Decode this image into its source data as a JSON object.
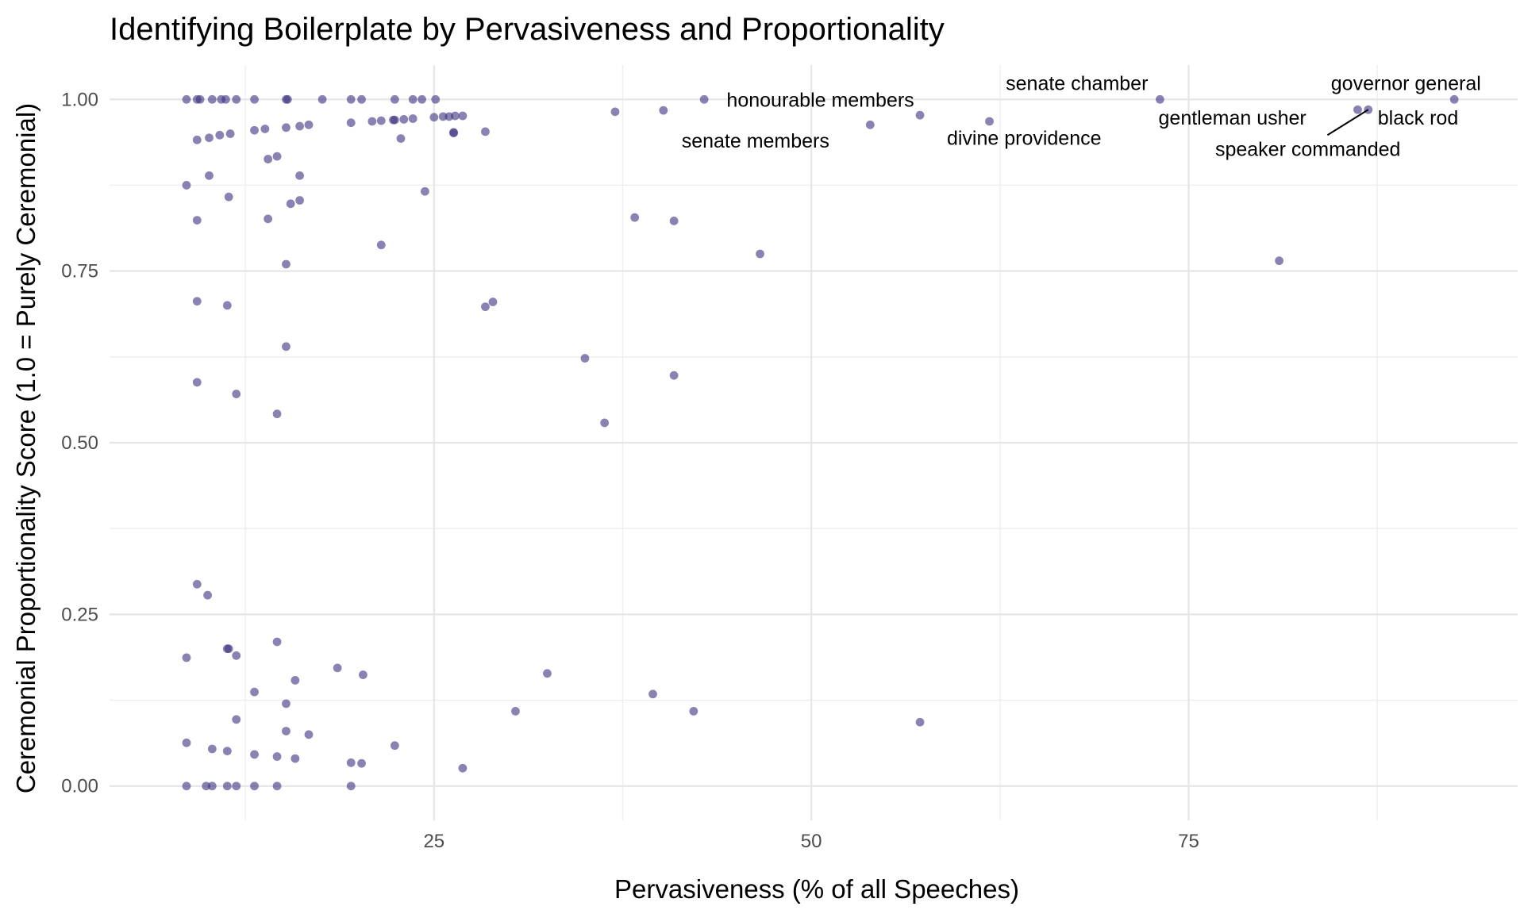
{
  "chart_data": {
    "type": "scatter",
    "title": "Identifying Boilerplate by Pervasiveness and Proportionality",
    "xlabel": "Pervasiveness (% of all Speeches)",
    "ylabel": "Ceremonial Proportionality Score (1.0 = Purely Ceremonial)",
    "xlim": [
      3.5,
      96.8
    ],
    "ylim": [
      -0.05,
      1.05
    ],
    "x_ticks": [
      25,
      50,
      75
    ],
    "y_ticks": [
      0.0,
      0.25,
      0.5,
      0.75,
      1.0
    ],
    "x_tick_labels": [
      "25",
      "50",
      "75"
    ],
    "y_tick_labels": [
      "0.00",
      "0.25",
      "0.50",
      "0.75",
      "1.00"
    ],
    "grid": true,
    "legend": "none",
    "point_color": "#3b3181",
    "point_opacity": 0.6,
    "points": [
      {
        "x": 8.6,
        "y": 1.0
      },
      {
        "x": 9.3,
        "y": 1.0
      },
      {
        "x": 9.5,
        "y": 1.0
      },
      {
        "x": 10.3,
        "y": 1.0
      },
      {
        "x": 10.9,
        "y": 1.0
      },
      {
        "x": 11.2,
        "y": 1.0
      },
      {
        "x": 11.9,
        "y": 1.0
      },
      {
        "x": 13.1,
        "y": 1.0
      },
      {
        "x": 15.2,
        "y": 1.0
      },
      {
        "x": 15.3,
        "y": 1.0
      },
      {
        "x": 17.6,
        "y": 1.0
      },
      {
        "x": 19.5,
        "y": 1.0
      },
      {
        "x": 20.2,
        "y": 1.0
      },
      {
        "x": 22.4,
        "y": 1.0
      },
      {
        "x": 23.6,
        "y": 1.0
      },
      {
        "x": 24.2,
        "y": 1.0
      },
      {
        "x": 25.1,
        "y": 1.0
      },
      {
        "x": 42.9,
        "y": 1.0
      },
      {
        "x": 73.1,
        "y": 1.0
      },
      {
        "x": 92.6,
        "y": 1.0
      },
      {
        "x": 9.3,
        "y": 0.941
      },
      {
        "x": 10.1,
        "y": 0.944
      },
      {
        "x": 10.8,
        "y": 0.948
      },
      {
        "x": 11.5,
        "y": 0.95
      },
      {
        "x": 13.1,
        "y": 0.955
      },
      {
        "x": 13.8,
        "y": 0.957
      },
      {
        "x": 15.2,
        "y": 0.959
      },
      {
        "x": 16.1,
        "y": 0.961
      },
      {
        "x": 16.7,
        "y": 0.963
      },
      {
        "x": 19.5,
        "y": 0.966
      },
      {
        "x": 20.9,
        "y": 0.968
      },
      {
        "x": 21.5,
        "y": 0.969
      },
      {
        "x": 22.3,
        "y": 0.97
      },
      {
        "x": 22.4,
        "y": 0.97
      },
      {
        "x": 23.0,
        "y": 0.971
      },
      {
        "x": 23.6,
        "y": 0.972
      },
      {
        "x": 25.0,
        "y": 0.974
      },
      {
        "x": 25.6,
        "y": 0.975
      },
      {
        "x": 26.0,
        "y": 0.975
      },
      {
        "x": 26.4,
        "y": 0.976
      },
      {
        "x": 26.9,
        "y": 0.976
      },
      {
        "x": 22.8,
        "y": 0.943
      },
      {
        "x": 26.3,
        "y": 0.951
      },
      {
        "x": 26.3,
        "y": 0.952
      },
      {
        "x": 28.4,
        "y": 0.953
      },
      {
        "x": 37.0,
        "y": 0.982
      },
      {
        "x": 40.2,
        "y": 0.984
      },
      {
        "x": 53.9,
        "y": 0.963
      },
      {
        "x": 57.2,
        "y": 0.977
      },
      {
        "x": 61.8,
        "y": 0.968
      },
      {
        "x": 86.2,
        "y": 0.985
      },
      {
        "x": 86.9,
        "y": 0.985
      },
      {
        "x": 14.0,
        "y": 0.913
      },
      {
        "x": 14.6,
        "y": 0.917
      },
      {
        "x": 10.1,
        "y": 0.889
      },
      {
        "x": 16.1,
        "y": 0.889
      },
      {
        "x": 8.6,
        "y": 0.875
      },
      {
        "x": 24.4,
        "y": 0.866
      },
      {
        "x": 11.4,
        "y": 0.858
      },
      {
        "x": 16.1,
        "y": 0.853
      },
      {
        "x": 15.5,
        "y": 0.848
      },
      {
        "x": 38.3,
        "y": 0.828
      },
      {
        "x": 14.0,
        "y": 0.826
      },
      {
        "x": 9.3,
        "y": 0.824
      },
      {
        "x": 40.9,
        "y": 0.823
      },
      {
        "x": 21.5,
        "y": 0.788
      },
      {
        "x": 46.6,
        "y": 0.775
      },
      {
        "x": 81.0,
        "y": 0.765
      },
      {
        "x": 15.2,
        "y": 0.76
      },
      {
        "x": 9.3,
        "y": 0.706
      },
      {
        "x": 28.9,
        "y": 0.705
      },
      {
        "x": 11.3,
        "y": 0.7
      },
      {
        "x": 28.4,
        "y": 0.698
      },
      {
        "x": 15.2,
        "y": 0.64
      },
      {
        "x": 35.0,
        "y": 0.623
      },
      {
        "x": 40.9,
        "y": 0.598
      },
      {
        "x": 9.3,
        "y": 0.588
      },
      {
        "x": 11.9,
        "y": 0.571
      },
      {
        "x": 14.6,
        "y": 0.542
      },
      {
        "x": 36.3,
        "y": 0.529
      },
      {
        "x": 9.3,
        "y": 0.294
      },
      {
        "x": 10.0,
        "y": 0.278
      },
      {
        "x": 14.6,
        "y": 0.21
      },
      {
        "x": 11.3,
        "y": 0.2
      },
      {
        "x": 11.4,
        "y": 0.2
      },
      {
        "x": 11.9,
        "y": 0.19
      },
      {
        "x": 8.6,
        "y": 0.187
      },
      {
        "x": 18.6,
        "y": 0.172
      },
      {
        "x": 32.5,
        "y": 0.164
      },
      {
        "x": 20.3,
        "y": 0.162
      },
      {
        "x": 15.8,
        "y": 0.154
      },
      {
        "x": 13.1,
        "y": 0.137
      },
      {
        "x": 39.5,
        "y": 0.134
      },
      {
        "x": 15.2,
        "y": 0.12
      },
      {
        "x": 30.4,
        "y": 0.109
      },
      {
        "x": 42.2,
        "y": 0.109
      },
      {
        "x": 11.9,
        "y": 0.097
      },
      {
        "x": 57.2,
        "y": 0.093
      },
      {
        "x": 15.2,
        "y": 0.08
      },
      {
        "x": 16.7,
        "y": 0.075
      },
      {
        "x": 8.6,
        "y": 0.063
      },
      {
        "x": 22.4,
        "y": 0.059
      },
      {
        "x": 10.3,
        "y": 0.054
      },
      {
        "x": 11.3,
        "y": 0.051
      },
      {
        "x": 13.1,
        "y": 0.046
      },
      {
        "x": 14.6,
        "y": 0.043
      },
      {
        "x": 15.8,
        "y": 0.04
      },
      {
        "x": 19.5,
        "y": 0.034
      },
      {
        "x": 20.2,
        "y": 0.033
      },
      {
        "x": 26.9,
        "y": 0.026
      },
      {
        "x": 8.6,
        "y": 0.0
      },
      {
        "x": 9.9,
        "y": 0.0
      },
      {
        "x": 10.3,
        "y": 0.0
      },
      {
        "x": 11.3,
        "y": 0.0
      },
      {
        "x": 11.9,
        "y": 0.0
      },
      {
        "x": 13.1,
        "y": 0.0
      },
      {
        "x": 14.6,
        "y": 0.0
      },
      {
        "x": 19.5,
        "y": 0.0
      }
    ],
    "annotations": [
      {
        "text": "senate chamber",
        "x": 73.1,
        "y": 1.0,
        "label_x": 67.6,
        "label_y": 1.024
      },
      {
        "text": "governor general",
        "x": 92.6,
        "y": 1.0,
        "label_x": 89.4,
        "label_y": 1.024
      },
      {
        "text": "honourable members",
        "x": 57.2,
        "y": 0.977,
        "label_x": 50.6,
        "label_y": 1.0
      },
      {
        "text": "gentleman usher",
        "x": 86.2,
        "y": 0.985,
        "label_x": 77.9,
        "label_y": 0.974
      },
      {
        "text": "black rod",
        "x": 86.9,
        "y": 0.985,
        "label_x": 90.2,
        "label_y": 0.974
      },
      {
        "text": "senate members",
        "x": 53.9,
        "y": 0.963,
        "label_x": 46.3,
        "label_y": 0.94
      },
      {
        "text": "divine providence",
        "x": 61.8,
        "y": 0.968,
        "label_x": 64.1,
        "label_y": 0.944
      },
      {
        "text": "speaker commanded",
        "x": 86.9,
        "y": 0.985,
        "label_x": 82.9,
        "label_y": 0.928,
        "connector": [
          84.2,
          0.948
        ]
      }
    ]
  }
}
